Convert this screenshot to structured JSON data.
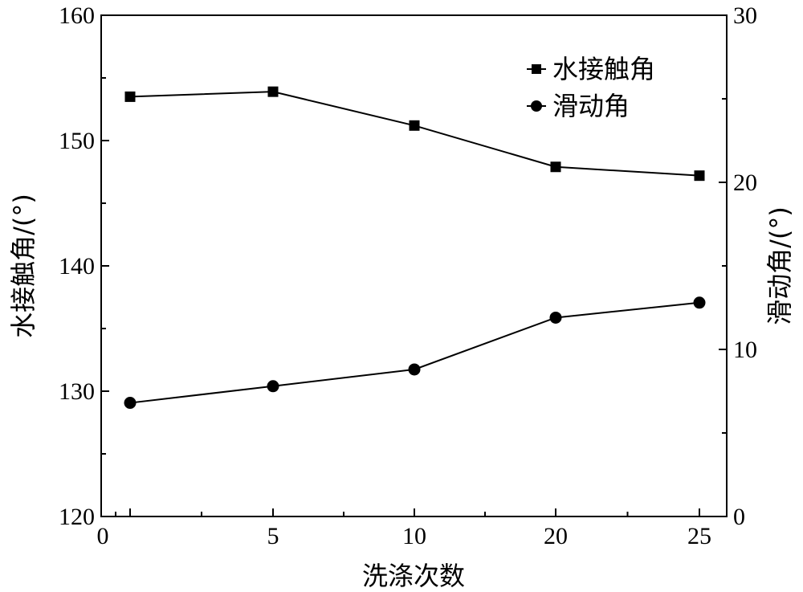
{
  "chart_data": {
    "type": "line",
    "x_categories": [
      "0",
      "5",
      "10",
      "20",
      "25"
    ],
    "xlabel": "洗涤次数",
    "ylabel_left": "水接触角/(°)",
    "ylabel_right": "滑动角/(°)",
    "ylim_left": [
      120,
      160
    ],
    "ylim_right": [
      0,
      30
    ],
    "yticks_left": [
      "120",
      "130",
      "140",
      "150",
      "160"
    ],
    "yticks_right": [
      "0",
      "10",
      "20",
      "30"
    ],
    "grid": false,
    "legend_position": "top-right",
    "series": [
      {
        "name": "水接触角",
        "axis": "left",
        "marker": "square",
        "x": [
          "0",
          "5",
          "10",
          "20",
          "25"
        ],
        "values": [
          153.5,
          153.9,
          151.2,
          147.9,
          147.2
        ]
      },
      {
        "name": "滑动角",
        "axis": "right",
        "marker": "circle",
        "x": [
          "0",
          "5",
          "10",
          "20",
          "25"
        ],
        "values": [
          6.8,
          7.8,
          8.8,
          11.9,
          12.8
        ]
      }
    ]
  }
}
